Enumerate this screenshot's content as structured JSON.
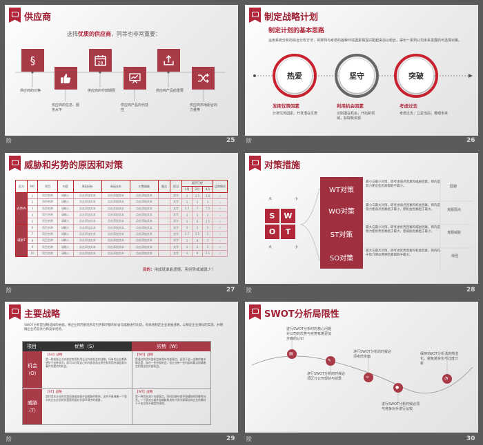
{
  "mark": "阶",
  "slides": {
    "s25": {
      "title": "供应商",
      "number": "25",
      "subtitle_a": "选择",
      "subtitle_b": "优质的供应商",
      "subtitle_c": "，同等也非常重要：",
      "items": [
        {
          "label": "供应商的价格",
          "icon": "section-icon"
        },
        {
          "label": "供应商的信息、服务水平",
          "icon": "thumbs-up-icon"
        },
        {
          "label": "供应商的付款期限",
          "icon": "calendar-icon"
        },
        {
          "label": "供应商产品的代替性",
          "icon": "presentation-icon"
        },
        {
          "label": "供应商产品的重要",
          "icon": "upload-icon"
        },
        {
          "label": "供应商市场配合的力量等",
          "icon": "shuffle-icon"
        }
      ]
    },
    "s26": {
      "title": "制定战略计划",
      "number": "26",
      "heading": "制定计划的基本思路",
      "desc": "运用系统分析的综合分析方法，将排列与考虑的各种环境因素相互匹配起来加以组合，得出一系列公司未来发展的可选择对策。",
      "circles": [
        {
          "label": "热爱",
          "caption": "发挥优势因素",
          "sub": "分析优势因素，开发潜在优势"
        },
        {
          "label": "坚守",
          "caption": "利用机会因素",
          "sub": "识别潜在机会，开拓新领域，获取新资源"
        },
        {
          "label": "突破",
          "caption": "考虑过去",
          "sub": "考虑过去，立足当前，着眼未来"
        }
      ]
    },
    "s27": {
      "title": "威胁和劣势的原因和对策",
      "number": "27",
      "side_groups": [
        "劣势W",
        "威胁T"
      ],
      "headers": [
        "区分",
        "NO",
        "项目",
        "内容",
        "原因分析",
        "原因分析",
        "对策措施",
        "备注",
        "担当",
        "展开日程",
        "运转情况"
      ],
      "subheaders": [
        "1月",
        "2月",
        "3月"
      ],
      "rows": [
        [
          "1",
          "项目名称",
          "请输入",
          "点击添加文本",
          "点击添加文本",
          "点击添加文本",
          "",
          "文字",
          "1",
          "2.5",
          "3.0"
        ],
        [
          "2",
          "项目名称",
          "请输入",
          "点击添加文本",
          "点击添加文本",
          "点击添加文本",
          "",
          "文字",
          "1",
          "2",
          "3"
        ],
        [
          "3",
          "项目名称",
          "请输入",
          "点击添加文本",
          "点击添加文本",
          "点击添加文本",
          "",
          "文字",
          "2.5",
          "7",
          "7.5"
        ],
        [
          "4",
          "项目名称",
          "请输入",
          "点击添加文本",
          "点击添加文本",
          "点击添加文本",
          "",
          "文字",
          "2",
          "3",
          "1"
        ],
        [
          "5",
          "项目名称",
          "请输入",
          "点击添加文本",
          "点击添加文本",
          "点击添加文本",
          "",
          "文字",
          "1",
          "6",
          "2.5"
        ],
        [
          "6",
          "项目名称",
          "请输入",
          "点击添加文本",
          "点击添加文本",
          "点击添加文本",
          "",
          "文字",
          "1",
          "2",
          "1"
        ],
        [
          "7",
          "项目名称",
          "请输入",
          "点击添加文本",
          "点击添加文本",
          "点击添加文本",
          "",
          "文字",
          "2.7",
          "2.5",
          "1"
        ],
        [
          "8",
          "项目名称",
          "请输入",
          "点击添加文本",
          "点击添加文本",
          "点击添加文本",
          "",
          "文字",
          "1",
          "8",
          "7"
        ],
        [
          "9",
          "项目名称",
          "请输入",
          "点击添加文本",
          "点击添加文本",
          "点击添加文本",
          "",
          "文字",
          "1",
          "2",
          "1"
        ],
        [
          "10",
          "项目名称",
          "请输入",
          "点击添加文本",
          "点击添加文本",
          "点击添加文本",
          "",
          "文字",
          "1",
          "8",
          "2.1"
        ]
      ],
      "footnote_a": "目的：",
      "footnote_b": "用成就谁能遗憾，用劣势或减弱少！"
    },
    "s28": {
      "title": "对策措施",
      "number": "28",
      "swot_letters": [
        "S",
        "W",
        "O",
        "T"
      ],
      "corners": [
        "大",
        "小",
        "大",
        "小"
      ],
      "strategies": [
        {
          "label": "WT对策",
          "text": "最小与最小对策，即考虑弱点因素和威胁因素，目的是努力使这些因素都趋于最小。",
          "note": "回避"
        },
        {
          "label": "WO对策",
          "text": "最小与最大对策，即考虑弱点因素和机会因素，目的是努力使弱点因素趋于最小，使机会因素趋于最大。",
          "note": "克服弱点"
        },
        {
          "label": "ST对策",
          "text": "最大与最小对策，即考虑优势因素和威胁因素，目的是努力使优势因素趋于最大，使威胁因素趋于最小。",
          "note": "克服威胁"
        },
        {
          "label": "SO对策",
          "text": "最大与最大对策，即考虑优势因素和机会因素，目的在于努力使这两种因素都趋于最大。",
          "note": "增强"
        }
      ]
    },
    "s29": {
      "title": "主要战略",
      "number": "29",
      "intro": "SWOT分析是战略选择的依据，将企业的内部优势与劣势和外部的机会与威胁进行比较，有效地制定企业发展战略，以保证企业目标的实现，并明确企业的竞争力和竞争优势。",
      "col_item": "项目",
      "col_s": "优势（S）",
      "col_w": "劣势（W）",
      "row_o": "机会（O）",
      "row_t": "威胁（T）",
      "so_title": "【SO】战略",
      "so_text": "是一种发挥企业内部优势而利用企业外部机会的战略。所有的企业都希望处于这种状况，即可以利用自己的内部优势去抓住和利用外部趋势与事件所提供的机会。",
      "wo_title": "【WO】战略",
      "wo_text": "是通过利用外部机会来弥补内部弱点，适用于这一战略的基本情况是：存在一些外部机会，但企业有一些内部的弱点妨碍着它利用这些外部机会。",
      "st_title": "【ST】战略",
      "st_text": "是利用本企业的优势回避或减轻外部威胁的影响。这并不意味着一个强大的企业必须时刻直接地面对外部环境中的威胁。",
      "wt_title": "【WT】战略",
      "wt_text": "是一种旨在减少内部弱点，同时回避外部环境威胁的防御性技术。一个面对大量外部威胁和具有众多内部弱点的企业的确处于不安全和不确定的境地。"
    },
    "s30": {
      "title": "SWOT分析局限性",
      "number": "30",
      "notes": [
        "进行SWOT分析时的核心问题对公司的优势与劣势有着更加全面的认识",
        "进行SWOT分析的时候必须区分公司现状与前景",
        "进行SWOT分析的时候必须考虑全面",
        "进行SWOT分析时候必须与竞争对手进行比较",
        "保持SWOT分析法的简洁化，避免复杂化与过度分析"
      ]
    }
  }
}
